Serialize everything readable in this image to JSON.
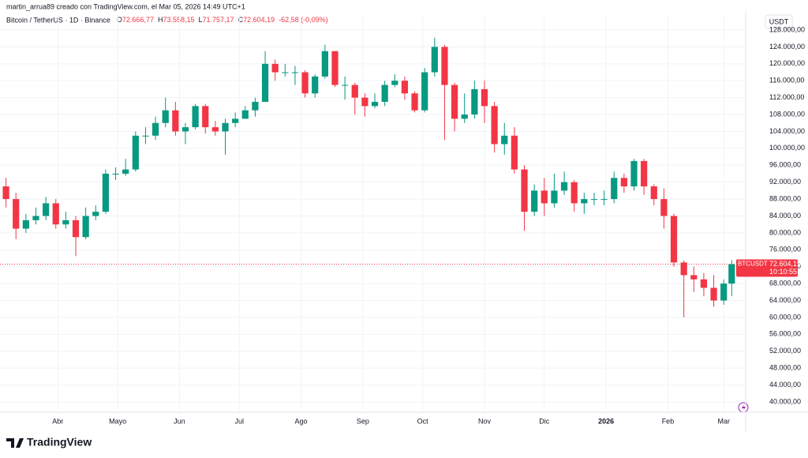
{
  "header": {
    "credit": "martin_arrua89 creado con TradingView.com, el Mar 05, 2026 14:49 UTC+1",
    "symbol": "Bitcoin / TetherUS · 1D · Binance",
    "ohlc": [
      {
        "label": "O",
        "value": "72.666,77"
      },
      {
        "label": "H",
        "value": "73.558,15"
      },
      {
        "label": "L",
        "value": "71.757,17"
      },
      {
        "label": "C",
        "value": "72.604,19"
      }
    ],
    "change": "-62,58 (-0,09%)"
  },
  "chart_data": {
    "type": "candlestick",
    "currency": "USDT",
    "up_color": "#089981",
    "down_color": "#f23645",
    "grid": true,
    "x": [
      0,
      5,
      10,
      15,
      20,
      25,
      30,
      35,
      40,
      45,
      50,
      55,
      60,
      65,
      70,
      75,
      80,
      85,
      90,
      95,
      100,
      105,
      110,
      115,
      120,
      125,
      130,
      135,
      140,
      145,
      150,
      155,
      160,
      165,
      170,
      175,
      180,
      185,
      190,
      195,
      200,
      205,
      210,
      215,
      220,
      225,
      230,
      235,
      240,
      245,
      250,
      255,
      260,
      265,
      270,
      275,
      280,
      285,
      290,
      295,
      300,
      305,
      310,
      315,
      320,
      325,
      330,
      335,
      340,
      345,
      350,
      355,
      360,
      364
    ],
    "open": [
      91000,
      88000,
      81000,
      83000,
      84000,
      87000,
      82000,
      83000,
      79000,
      84000,
      85000,
      94000,
      94000,
      95000,
      103000,
      103000,
      106000,
      109000,
      104000,
      105000,
      110000,
      105000,
      104000,
      106000,
      107000,
      109000,
      111000,
      120000,
      118000,
      118000,
      118000,
      113000,
      117000,
      123000,
      115000,
      115000,
      112000,
      110000,
      111000,
      115000,
      116000,
      113000,
      109000,
      118000,
      124000,
      115000,
      107000,
      108000,
      114000,
      110000,
      101000,
      103000,
      95000,
      85000,
      90000,
      87000,
      90000,
      92000,
      87000,
      88000,
      88000,
      88000,
      93000,
      91000,
      97000,
      91000,
      88000,
      84000,
      73000,
      70000,
      69000,
      67000,
      64000,
      68000
    ],
    "high": [
      93000,
      89500,
      84500,
      86000,
      88500,
      88000,
      85000,
      84000,
      86000,
      86500,
      95000,
      95500,
      97500,
      104000,
      105000,
      107500,
      112000,
      111000,
      106000,
      110500,
      110500,
      106500,
      107000,
      108500,
      110000,
      112000,
      123000,
      121000,
      120000,
      119500,
      118500,
      117500,
      124500,
      123000,
      117000,
      115500,
      113000,
      113000,
      116000,
      117500,
      117000,
      113500,
      119000,
      126200,
      124500,
      115500,
      113000,
      116000,
      116000,
      111000,
      106000,
      105000,
      96000,
      91500,
      93000,
      94000,
      94500,
      92500,
      89500,
      89500,
      90000,
      94500,
      94000,
      97500,
      97500,
      91500,
      90500,
      84500,
      73500,
      72000,
      70500,
      70000,
      69000,
      73558.15
    ],
    "low": [
      86000,
      78500,
      80000,
      82000,
      83000,
      81000,
      81000,
      74500,
      78500,
      83000,
      84500,
      92500,
      93500,
      94500,
      101000,
      102000,
      105000,
      103000,
      101000,
      104500,
      103500,
      103000,
      98500,
      105000,
      107000,
      107500,
      111000,
      116000,
      117000,
      115000,
      112000,
      112000,
      116500,
      114500,
      111500,
      108000,
      107500,
      109500,
      110000,
      114500,
      111500,
      108500,
      108500,
      117000,
      102000,
      104000,
      106000,
      107000,
      106000,
      99000,
      98500,
      94000,
      80500,
      84000,
      84000,
      86000,
      89000,
      85000,
      84500,
      86500,
      86500,
      87000,
      89500,
      90000,
      89000,
      86500,
      81000,
      72000,
      60000,
      66000,
      65000,
      62500,
      63000,
      65000
    ],
    "close": [
      88000,
      81000,
      83000,
      84000,
      87000,
      82000,
      83000,
      79000,
      84000,
      85000,
      94000,
      94000,
      95000,
      103000,
      103000,
      106000,
      109000,
      104000,
      105000,
      110000,
      105000,
      104000,
      106000,
      107000,
      109000,
      111000,
      120000,
      118000,
      118000,
      118000,
      113000,
      117000,
      123000,
      115000,
      115000,
      112000,
      110000,
      111000,
      115000,
      116000,
      113000,
      109000,
      118000,
      124000,
      115000,
      107000,
      108000,
      114000,
      110000,
      101000,
      103000,
      95000,
      85000,
      90000,
      87000,
      90000,
      92000,
      87000,
      88000,
      88000,
      88000,
      93000,
      91000,
      97000,
      91000,
      88000,
      84000,
      73000,
      70000,
      69000,
      67000,
      64000,
      68000,
      72604.19
    ],
    "xlim": [
      -3,
      371
    ],
    "xticks": [
      {
        "value": 26,
        "label": "Abr"
      },
      {
        "value": 56,
        "label": "Mayo"
      },
      {
        "value": 87,
        "label": "Jun"
      },
      {
        "value": 117,
        "label": "Jul"
      },
      {
        "value": 148,
        "label": "Ago"
      },
      {
        "value": 179,
        "label": "Sep"
      },
      {
        "value": 209,
        "label": "Oct"
      },
      {
        "value": 240,
        "label": "Nov"
      },
      {
        "value": 270,
        "label": "Dic"
      },
      {
        "value": 301,
        "label": "2026"
      },
      {
        "value": 332,
        "label": "Feb"
      },
      {
        "value": 360,
        "label": "Mar"
      }
    ],
    "ylim": [
      40000,
      128000
    ],
    "yticks": [
      {
        "value": 40000,
        "label": "40.000,00"
      },
      {
        "value": 44000,
        "label": "44.000,00"
      },
      {
        "value": 48000,
        "label": "48.000,00"
      },
      {
        "value": 52000,
        "label": "52.000,00"
      },
      {
        "value": 56000,
        "label": "56.000,00"
      },
      {
        "value": 60000,
        "label": "60.000,00"
      },
      {
        "value": 64000,
        "label": "64.000,00"
      },
      {
        "value": 68000,
        "label": "68.000,00"
      },
      {
        "value": 72000,
        "label": "72.000,00"
      },
      {
        "value": 76000,
        "label": "76.000,00"
      },
      {
        "value": 80000,
        "label": "80.000,00"
      },
      {
        "value": 84000,
        "label": "84.000,00"
      },
      {
        "value": 88000,
        "label": "88.000,00"
      },
      {
        "value": 92000,
        "label": "92.000,00"
      },
      {
        "value": 96000,
        "label": "96.000,00"
      },
      {
        "value": 100000,
        "label": "100.000,00"
      },
      {
        "value": 104000,
        "label": "104.000,00"
      },
      {
        "value": 108000,
        "label": "108.000,00"
      },
      {
        "value": 112000,
        "label": "112.000,00"
      },
      {
        "value": 116000,
        "label": "116.000,00"
      },
      {
        "value": 120000,
        "label": "120.000,00"
      },
      {
        "value": 124000,
        "label": "124.000,00"
      },
      {
        "value": 128000,
        "label": "128.000,00"
      }
    ],
    "price_tag": {
      "symbol": "BTCUSDT",
      "price": "72.604,19",
      "countdown": "10:10:55"
    }
  },
  "footer": {
    "logo": "TradingView"
  }
}
